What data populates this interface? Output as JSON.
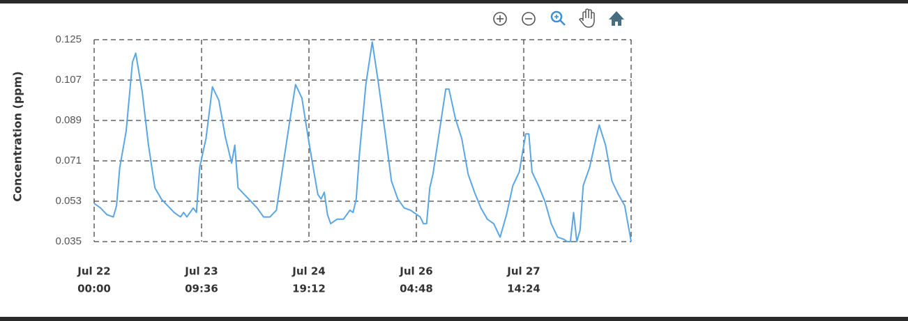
{
  "chart_data": {
    "type": "line",
    "ylabel": "Concentration (ppm)",
    "color": "#5aa5e6",
    "x": [
      0,
      2,
      4,
      6,
      7,
      8,
      10,
      12,
      13,
      15,
      17,
      19,
      21,
      23,
      25,
      27,
      28,
      29,
      31,
      32,
      33,
      35,
      37,
      39,
      41,
      43,
      44,
      45,
      47,
      49,
      51,
      53,
      55,
      57,
      59,
      61,
      63,
      65,
      67,
      69,
      70,
      71,
      72,
      73,
      74,
      76,
      78,
      80,
      81,
      82,
      83,
      85,
      87,
      89,
      91,
      93,
      95,
      97,
      99,
      101,
      102,
      103,
      104,
      105,
      106,
      108,
      110,
      111,
      113,
      115,
      117,
      119,
      121,
      123,
      125,
      127,
      129,
      131,
      133,
      135,
      136,
      137,
      139,
      141,
      143,
      145,
      147,
      148,
      149,
      150,
      151,
      152,
      153,
      155,
      157,
      158,
      160,
      162,
      164,
      166,
      168
    ],
    "values": [
      0.052,
      0.05,
      0.047,
      0.046,
      0.051,
      0.068,
      0.084,
      0.115,
      0.119,
      0.102,
      0.078,
      0.059,
      0.054,
      0.051,
      0.048,
      0.046,
      0.048,
      0.046,
      0.05,
      0.048,
      0.068,
      0.081,
      0.104,
      0.098,
      0.082,
      0.07,
      0.078,
      0.059,
      0.056,
      0.053,
      0.05,
      0.046,
      0.046,
      0.049,
      0.068,
      0.087,
      0.105,
      0.099,
      0.081,
      0.064,
      0.056,
      0.054,
      0.057,
      0.047,
      0.043,
      0.045,
      0.045,
      0.049,
      0.048,
      0.054,
      0.074,
      0.105,
      0.124,
      0.105,
      0.084,
      0.062,
      0.054,
      0.05,
      0.049,
      0.047,
      0.046,
      0.043,
      0.043,
      0.059,
      0.065,
      0.084,
      0.103,
      0.103,
      0.09,
      0.081,
      0.065,
      0.057,
      0.05,
      0.045,
      0.043,
      0.037,
      0.047,
      0.06,
      0.066,
      0.083,
      0.083,
      0.066,
      0.06,
      0.053,
      0.043,
      0.037,
      0.036,
      0.035,
      0.035,
      0.048,
      0.035,
      0.04,
      0.06,
      0.068,
      0.081,
      0.087,
      0.078,
      0.062,
      0.056,
      0.051,
      0.035
    ],
    "xlim": [
      0,
      168
    ],
    "xticks": [
      {
        "value": 0,
        "label": [
          "Jul 22",
          "00:00"
        ]
      },
      {
        "value": 33.6,
        "label": [
          "Jul 23",
          "09:36"
        ]
      },
      {
        "value": 67.2,
        "label": [
          "Jul 24",
          "19:12"
        ]
      },
      {
        "value": 100.8,
        "label": [
          "Jul 26",
          "04:48"
        ]
      },
      {
        "value": 134.4,
        "label": [
          "Jul 27",
          "14:24"
        ]
      }
    ],
    "ylim": [
      0.035,
      0.125
    ],
    "yticks": [
      0.035,
      0.053,
      0.071,
      0.089,
      0.107,
      0.125
    ],
    "grid": true
  }
}
